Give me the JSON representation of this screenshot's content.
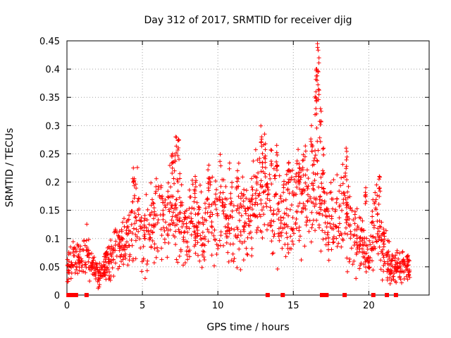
{
  "chart_data": {
    "type": "scatter",
    "title": "Day 312 of 2017, SRMTID for receiver djig",
    "xlabel": "GPS time / hours",
    "ylabel": "SRMTID / TECUs",
    "xlim": [
      0,
      24
    ],
    "ylim": [
      0,
      0.45
    ],
    "grid": true,
    "marker": "+",
    "color": "#ff0000",
    "x_ticks": [
      0,
      5,
      10,
      15,
      20
    ],
    "x_tick_labels": [
      "0",
      "5",
      "10",
      "15",
      "20"
    ],
    "y_ticks": [
      0,
      0.05,
      0.1,
      0.15,
      0.2,
      0.25,
      0.3,
      0.35,
      0.4,
      0.45
    ],
    "y_tick_labels": [
      "0",
      "0.05",
      "0.1",
      "0.15",
      "0.2",
      "0.25",
      "0.3",
      "0.35",
      "0.4",
      "0.45"
    ],
    "series": [
      {
        "name": "SRMTID",
        "trend": [
          [
            0.0,
            0.05
          ],
          [
            0.5,
            0.065
          ],
          [
            1.0,
            0.06
          ],
          [
            1.3,
            0.09
          ],
          [
            1.6,
            0.05
          ],
          [
            2.0,
            0.035
          ],
          [
            2.4,
            0.04
          ],
          [
            2.8,
            0.065
          ],
          [
            3.3,
            0.08
          ],
          [
            3.8,
            0.09
          ],
          [
            4.2,
            0.12
          ],
          [
            4.6,
            0.15
          ],
          [
            5.0,
            0.11
          ],
          [
            5.5,
            0.12
          ],
          [
            6.0,
            0.14
          ],
          [
            6.5,
            0.15
          ],
          [
            7.0,
            0.16
          ],
          [
            7.5,
            0.14
          ],
          [
            8.0,
            0.12
          ],
          [
            8.5,
            0.14
          ],
          [
            9.0,
            0.11
          ],
          [
            9.5,
            0.15
          ],
          [
            10.0,
            0.14
          ],
          [
            10.5,
            0.15
          ],
          [
            11.0,
            0.13
          ],
          [
            11.5,
            0.15
          ],
          [
            12.0,
            0.14
          ],
          [
            12.5,
            0.16
          ],
          [
            13.0,
            0.18
          ],
          [
            13.5,
            0.17
          ],
          [
            14.0,
            0.15
          ],
          [
            14.5,
            0.14
          ],
          [
            15.0,
            0.16
          ],
          [
            15.5,
            0.18
          ],
          [
            16.0,
            0.17
          ],
          [
            16.5,
            0.22
          ],
          [
            17.0,
            0.16
          ],
          [
            17.5,
            0.12
          ],
          [
            18.0,
            0.14
          ],
          [
            18.5,
            0.16
          ],
          [
            19.0,
            0.11
          ],
          [
            19.5,
            0.09
          ],
          [
            20.0,
            0.07
          ],
          [
            20.5,
            0.14
          ],
          [
            21.0,
            0.08
          ],
          [
            21.5,
            0.05
          ],
          [
            22.0,
            0.045
          ],
          [
            22.5,
            0.045
          ],
          [
            22.8,
            0.035
          ]
        ],
        "spikes": [
          [
            2.6,
            0.075
          ],
          [
            4.4,
            0.225
          ],
          [
            7.2,
            0.28
          ],
          [
            7.4,
            0.275
          ],
          [
            7.0,
            0.25
          ],
          [
            8.5,
            0.21
          ],
          [
            9.4,
            0.23
          ],
          [
            11.3,
            0.22
          ],
          [
            12.9,
            0.28
          ],
          [
            13.1,
            0.285
          ],
          [
            13.9,
            0.265
          ],
          [
            14.7,
            0.235
          ],
          [
            15.4,
            0.225
          ],
          [
            16.2,
            0.3
          ],
          [
            16.5,
            0.36
          ],
          [
            16.55,
            0.4
          ],
          [
            16.6,
            0.445
          ],
          [
            16.7,
            0.42
          ],
          [
            16.8,
            0.33
          ],
          [
            17.0,
            0.26
          ],
          [
            18.5,
            0.26
          ],
          [
            19.8,
            0.19
          ],
          [
            20.7,
            0.21
          ],
          [
            21.0,
            0.11
          ],
          [
            22.6,
            0.07
          ]
        ],
        "count": 1500,
        "data_gaps_at_zero": [
          0.1,
          0.35,
          0.6,
          1.3,
          13.3,
          14.3,
          16.9,
          17.0,
          17.2,
          18.4,
          20.3,
          21.2,
          21.8
        ]
      }
    ]
  }
}
